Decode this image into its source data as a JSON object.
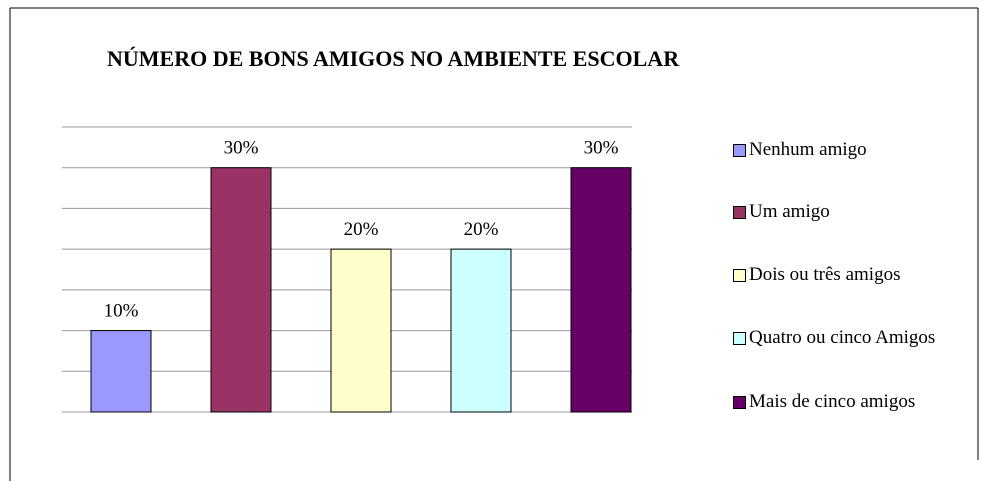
{
  "chart_data": {
    "type": "bar",
    "title": "NÚMERO DE BONS AMIGOS NO AMBIENTE ESCOLAR",
    "series": [
      {
        "name": "Nenhum amigo",
        "color": "#9999ff",
        "values": [
          10
        ],
        "value_labels": [
          "10%"
        ]
      },
      {
        "name": "Um amigo",
        "color": "#993366",
        "values": [
          30
        ],
        "value_labels": [
          "30%"
        ]
      },
      {
        "name": "Dois ou três amigos",
        "color": "#ffffcc",
        "values": [
          20
        ],
        "value_labels": [
          "20%"
        ]
      },
      {
        "name": "Quatro ou cinco Amigos",
        "color": "#ccffff",
        "values": [
          20
        ],
        "value_labels": [
          "20%"
        ]
      },
      {
        "name": "Mais de cinco amigos",
        "color": "#660066",
        "values": [
          30
        ],
        "value_labels": [
          "30%"
        ]
      }
    ],
    "ylim": [
      0,
      35
    ],
    "yticks": [
      0,
      5,
      10,
      15,
      20,
      25,
      30,
      35
    ],
    "grid": true,
    "legend": "right"
  }
}
